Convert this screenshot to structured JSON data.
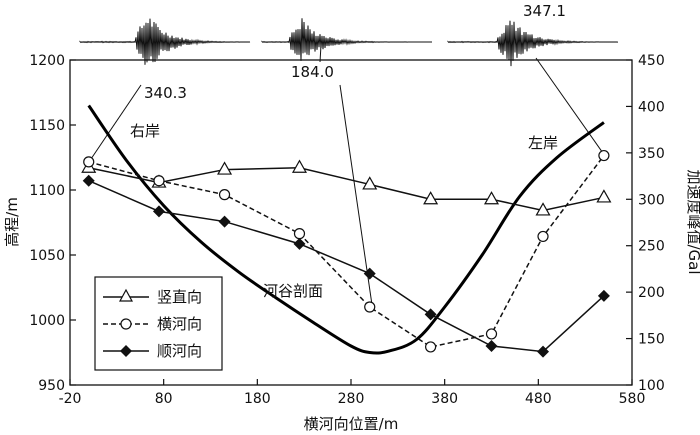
{
  "chart_data": {
    "type": "line",
    "xlabel": "横河向位置/m",
    "ylabel_left": "高程/m",
    "ylabel_right": "加速度峰值/Gal",
    "xlim": [
      -20,
      580
    ],
    "ylim_left": [
      950,
      1200
    ],
    "ylim_right": [
      100,
      450
    ],
    "x_ticks": [
      -20,
      80,
      180,
      280,
      380,
      480,
      580
    ],
    "y_left_ticks": [
      950,
      1000,
      1050,
      1100,
      1150,
      1200
    ],
    "y_right_ticks": [
      100,
      150,
      200,
      250,
      300,
      350,
      400,
      450
    ],
    "grid": false,
    "legend_position": "lower-left",
    "series": [
      {
        "name": "竖直向",
        "axis": "right",
        "style": "solid",
        "marker": "triangle",
        "x": [
          0,
          75,
          145,
          225,
          300,
          365,
          430,
          485,
          550
        ],
        "y": [
          334,
          318,
          332,
          334,
          316,
          300,
          300,
          288,
          302
        ]
      },
      {
        "name": "横河向",
        "axis": "right",
        "style": "dashed",
        "marker": "circle",
        "x": [
          0,
          75,
          145,
          225,
          300,
          365,
          430,
          485,
          550
        ],
        "y": [
          340.3,
          320,
          305,
          263,
          184.0,
          141,
          155,
          260,
          347.1
        ]
      },
      {
        "name": "顺河向",
        "axis": "right",
        "style": "solid",
        "marker": "diamond",
        "x": [
          0,
          75,
          145,
          225,
          300,
          365,
          430,
          485,
          550
        ],
        "y": [
          320,
          287,
          276,
          252,
          220,
          176,
          142,
          136,
          196
        ]
      },
      {
        "name": "河谷剖面",
        "axis": "left",
        "style": "bold",
        "marker": "none",
        "x": [
          0,
          40,
          80,
          120,
          160,
          200,
          240,
          280,
          300,
          320,
          350,
          380,
          420,
          460,
          500,
          550
        ],
        "y": [
          1165,
          1123,
          1088,
          1060,
          1037,
          1017,
          998,
          980,
          975,
          976,
          985,
          1010,
          1050,
          1095,
          1125,
          1152
        ]
      }
    ],
    "annotations": [
      {
        "text": "右岸",
        "x": 35,
        "y_left": 1140
      },
      {
        "text": "左岸",
        "x": 455,
        "y_left": 1134
      },
      {
        "text": "河谷剖面",
        "x": 245,
        "y_left": 1020
      },
      {
        "text": "340.3"
      },
      {
        "text": "184.0"
      },
      {
        "text": "347.1"
      }
    ]
  }
}
